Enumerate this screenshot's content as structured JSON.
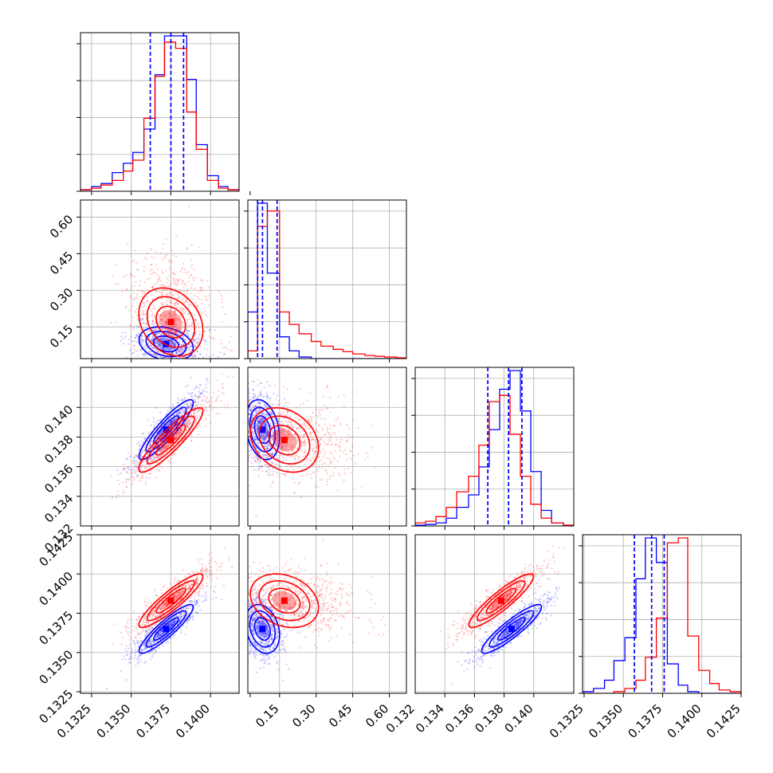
{
  "figure": {
    "type": "corner-plot",
    "contour_levels": 3
  },
  "parameters": [
    {
      "range": [
        0.1318,
        0.1418
      ],
      "ticks": [
        "0.1325",
        "0.1350",
        "0.1375",
        "0.1400"
      ],
      "grid": [
        0.1325,
        0.135,
        0.1375,
        0.14,
        0.1425
      ]
    },
    {
      "range": [
        0.02,
        0.67
      ],
      "ticks": [
        "0.15",
        "0.30",
        "0.45",
        "0.60"
      ],
      "grid": [
        0.15,
        0.3,
        0.45,
        0.6
      ]
    },
    {
      "range": [
        0.132,
        0.1427
      ],
      "ticks": [
        "0.132",
        "0.134",
        "0.136",
        "0.138",
        "0.140"
      ],
      "grid": [
        0.134,
        0.136,
        0.138,
        0.14
      ]
    },
    {
      "range": [
        0.1324,
        0.1425
      ],
      "ticks": [
        "0.1325",
        "0.1350",
        "0.1375",
        "0.1400",
        "0.1425"
      ],
      "grid": [
        0.1325,
        0.135,
        0.1375,
        0.14,
        0.1425
      ]
    }
  ],
  "chart_data": {
    "type": "scatter",
    "series": [
      {
        "color": "#0000ff",
        "means": [
          0.1372,
          0.08,
          0.1385,
          0.1365
        ],
        "sds": [
          0.0011,
          0.045,
          0.0013,
          0.001
        ],
        "quantiles": [
          [
            0.1362,
            0.1375,
            0.1383
          ],
          [
            0.06,
            0.08,
            0.14
          ],
          [
            0.1369,
            0.1383,
            0.1392
          ],
          [
            0.1357,
            0.1368,
            0.1376
          ]
        ]
      },
      {
        "color": "#ff0000",
        "means": [
          0.1375,
          0.17,
          0.1378,
          0.1383
        ],
        "sds": [
          0.0013,
          0.09,
          0.0014,
          0.0011
        ]
      }
    ],
    "histograms": [
      {
        "param": 0,
        "edges": [
          0.1318,
          0.1325,
          0.1331,
          0.1338,
          0.1345,
          0.1351,
          0.1358,
          0.1365,
          0.1371,
          0.1378,
          0.1385,
          0.1391,
          0.1398,
          0.1405,
          0.1411,
          0.1418
        ],
        "blue": [
          0.01,
          0.03,
          0.05,
          0.12,
          0.18,
          0.25,
          0.4,
          0.75,
          1.0,
          1.0,
          0.72,
          0.3,
          0.1,
          0.03,
          0.01
        ],
        "red": [
          0.01,
          0.02,
          0.04,
          0.07,
          0.13,
          0.2,
          0.47,
          0.74,
          0.96,
          0.92,
          0.51,
          0.27,
          0.07,
          0.02,
          0.01
        ]
      },
      {
        "param": 1,
        "edges": [
          0.02,
          0.06,
          0.1,
          0.15,
          0.19,
          0.23,
          0.28,
          0.32,
          0.37,
          0.41,
          0.45,
          0.5,
          0.54,
          0.58,
          0.63,
          0.67
        ],
        "blue": [
          0.3,
          1.0,
          0.55,
          0.14,
          0.05,
          0.01,
          0,
          0,
          0,
          0,
          0,
          0,
          0,
          0,
          0
        ],
        "red": [
          0.05,
          0.85,
          0.95,
          0.3,
          0.22,
          0.16,
          0.11,
          0.08,
          0.06,
          0.045,
          0.03,
          0.02,
          0.015,
          0.01,
          0.005
        ]
      },
      {
        "param": 2,
        "edges": [
          0.132,
          0.1327,
          0.1334,
          0.1341,
          0.1348,
          0.1356,
          0.1363,
          0.137,
          0.1377,
          0.1384,
          0.1391,
          0.1398,
          0.1405,
          0.1412,
          0.142,
          0.1427
        ],
        "blue": [
          0.005,
          0.01,
          0.02,
          0.05,
          0.12,
          0.2,
          0.38,
          0.62,
          0.88,
          1.0,
          0.74,
          0.35,
          0.1,
          0.02,
          0.005
        ],
        "red": [
          0.02,
          0.03,
          0.06,
          0.12,
          0.22,
          0.32,
          0.52,
          0.8,
          0.84,
          0.59,
          0.32,
          0.14,
          0.05,
          0.02,
          0.005
        ]
      },
      {
        "param": 3,
        "edges": [
          0.1324,
          0.1331,
          0.1338,
          0.1344,
          0.1351,
          0.1358,
          0.1364,
          0.1371,
          0.1378,
          0.1385,
          0.1391,
          0.1398,
          0.1405,
          0.1411,
          0.1418,
          0.1425
        ],
        "blue": [
          0.01,
          0.03,
          0.08,
          0.2,
          0.34,
          0.7,
          0.95,
          0.8,
          0.18,
          0.05,
          0.01,
          0,
          0,
          0,
          0
        ],
        "red": [
          0,
          0,
          0,
          0.01,
          0.03,
          0.08,
          0.22,
          0.46,
          0.92,
          0.95,
          0.35,
          0.14,
          0.06,
          0.02,
          0.01
        ]
      }
    ]
  }
}
